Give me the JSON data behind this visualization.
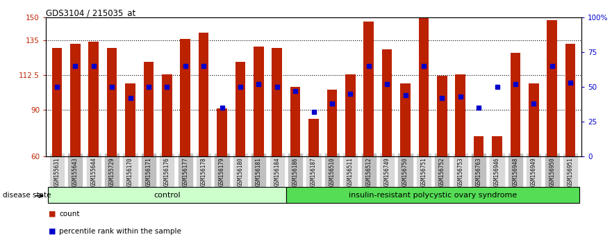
{
  "title": "GDS3104 / 215035_at",
  "samples": [
    "GSM155631",
    "GSM155643",
    "GSM155644",
    "GSM155729",
    "GSM156170",
    "GSM156171",
    "GSM156176",
    "GSM156177",
    "GSM156178",
    "GSM156179",
    "GSM156180",
    "GSM156181",
    "GSM156184",
    "GSM156186",
    "GSM156187",
    "GSM156510",
    "GSM156511",
    "GSM156512",
    "GSM156749",
    "GSM156750",
    "GSM156751",
    "GSM156752",
    "GSM156753",
    "GSM156763",
    "GSM156946",
    "GSM156948",
    "GSM156949",
    "GSM156950",
    "GSM156951"
  ],
  "bar_values": [
    130,
    133,
    134,
    130,
    107,
    121,
    113,
    136,
    140,
    91,
    121,
    131,
    130,
    105,
    84,
    103,
    113,
    147,
    129,
    107,
    150,
    112,
    113,
    73,
    73,
    127,
    107,
    148,
    133
  ],
  "percentile_values": [
    50,
    65,
    65,
    50,
    42,
    50,
    50,
    65,
    65,
    35,
    50,
    52,
    50,
    47,
    32,
    38,
    45,
    65,
    52,
    44,
    65,
    42,
    43,
    35,
    50,
    52,
    38,
    65,
    53
  ],
  "group_labels": [
    "control",
    "insulin-resistant polycystic ovary syndrome"
  ],
  "group_sizes": [
    13,
    16
  ],
  "ylim_left": [
    60,
    150
  ],
  "ylim_right": [
    0,
    100
  ],
  "yticks_left": [
    60,
    90,
    112.5,
    135,
    150
  ],
  "ytick_labels_left": [
    "60",
    "90",
    "112.5",
    "135",
    "150"
  ],
  "yticks_right": [
    0,
    25,
    50,
    75,
    100
  ],
  "ytick_labels_right": [
    "0",
    "25",
    "50",
    "75",
    "100%"
  ],
  "hgrid_lines": [
    90,
    112.5,
    135
  ],
  "bar_color": "#bb2200",
  "dot_color": "#0000cc",
  "control_bg": "#ccffcc",
  "disease_bg": "#55dd55",
  "bar_width": 0.55,
  "legend_items": [
    "count",
    "percentile rank within the sample"
  ]
}
